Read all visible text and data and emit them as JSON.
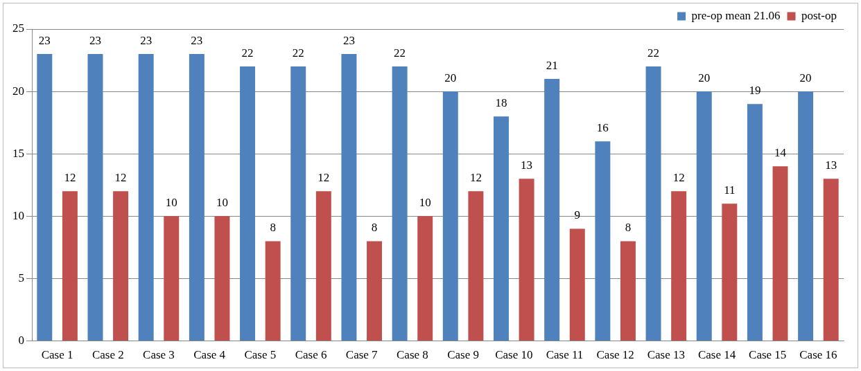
{
  "chart_data": {
    "type": "bar",
    "categories": [
      "Case 1",
      "Case 2",
      "Case 3",
      "Case 4",
      "Case 5",
      "Case 6",
      "Case 7",
      "Case 8",
      "Case 9",
      "Case 10",
      "Case 11",
      "Case 12",
      "Case 13",
      "Case 14",
      "Case 15",
      "Case 16"
    ],
    "series": [
      {
        "name": "pre-op mean 21.06",
        "color": "#4f81bd",
        "values": [
          23,
          23,
          23,
          23,
          22,
          22,
          23,
          22,
          20,
          18,
          21,
          16,
          22,
          20,
          19,
          20
        ]
      },
      {
        "name": "post-op",
        "color": "#c0504d",
        "values": [
          12,
          12,
          10,
          10,
          8,
          12,
          8,
          10,
          12,
          13,
          9,
          8,
          12,
          11,
          14,
          13
        ]
      }
    ],
    "ylim": [
      0,
      25
    ],
    "yticks": [
      0,
      5,
      10,
      15,
      20,
      25
    ],
    "grid": "y",
    "legend": "top right",
    "data_labels": true
  }
}
